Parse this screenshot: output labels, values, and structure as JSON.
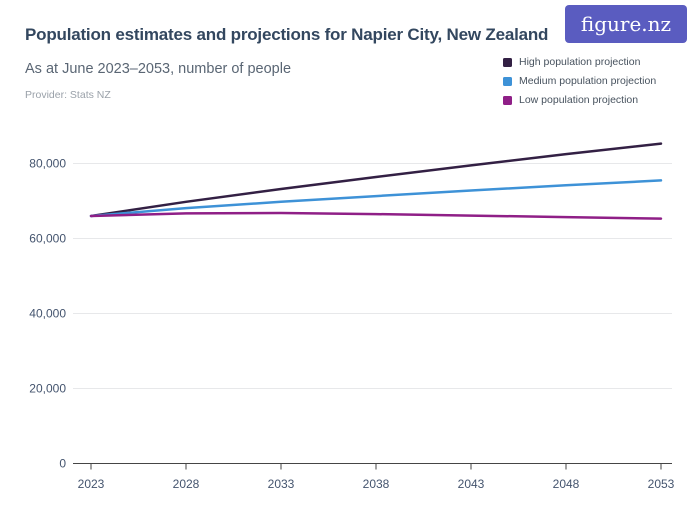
{
  "header": {
    "title": "Population estimates and projections for Napier City, New Zealand",
    "subtitle": "As at June 2023–2053, number of people",
    "provider": "Provider: Stats NZ",
    "logo_text": "figure.nz"
  },
  "colors": {
    "title_text": "#33475f",
    "subtitle_text": "#5a6674",
    "provider_text": "#9aa1a9",
    "logo_background": "#5a5cc0",
    "logo_text": "#ffffff",
    "axis_label": "#44546e",
    "gridline": "#e7e8ea",
    "axis_line": "#454545",
    "high_series": "#332044",
    "medium_series": "#3e92d7",
    "low_series": "#8f1f87",
    "background": "#ffffff"
  },
  "chart_data": {
    "type": "line",
    "title": "Population estimates and projections for Napier City, New Zealand",
    "subtitle": "As at June 2023–2053, number of people",
    "xlabel": "",
    "ylabel": "number of people",
    "x": [
      2023,
      2028,
      2033,
      2038,
      2043,
      2048,
      2053
    ],
    "series": [
      {
        "name": "High population projection",
        "color": "#332044",
        "values": [
          66000,
          69800,
          73200,
          76400,
          79500,
          82500,
          85300
        ]
      },
      {
        "name": "Medium population projection",
        "color": "#3e92d7",
        "values": [
          66000,
          68100,
          69800,
          71300,
          72800,
          74200,
          75500
        ]
      },
      {
        "name": "Low population projection",
        "color": "#8f1f87",
        "values": [
          66000,
          66700,
          66800,
          66500,
          66100,
          65700,
          65300
        ]
      }
    ],
    "ylim": [
      0,
      88000
    ],
    "yticks": [
      0,
      20000,
      40000,
      60000,
      80000
    ],
    "ytick_labels": [
      "0",
      "20,000",
      "40,000",
      "60,000",
      "80,000"
    ],
    "grid": "horizontal",
    "legend_position": "top-right"
  }
}
